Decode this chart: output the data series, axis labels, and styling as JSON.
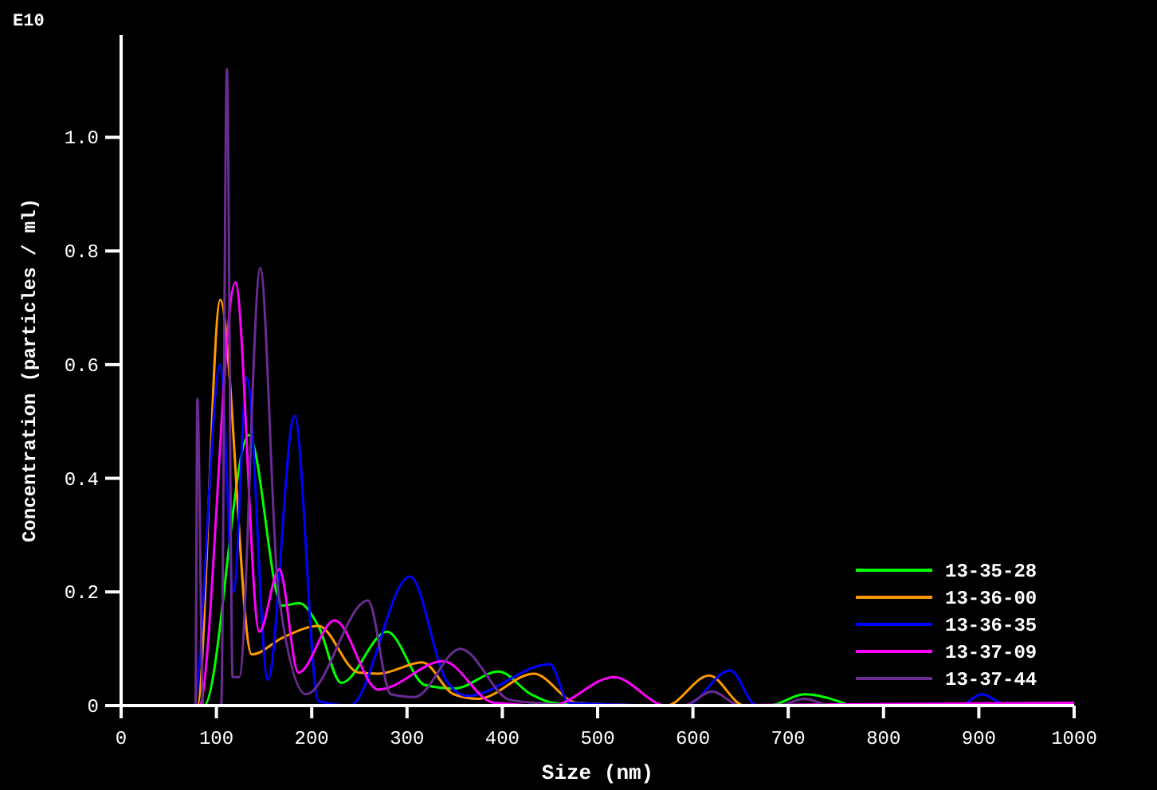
{
  "chart_data": {
    "type": "line",
    "xlabel": "Size (nm)",
    "ylabel": "Concentration (particles / ml)",
    "annotations": [
      "E10"
    ],
    "xlim": [
      0,
      1000
    ],
    "xticks": [
      0,
      100,
      200,
      300,
      400,
      500,
      600,
      700,
      800,
      900,
      1000
    ],
    "ylim": [
      0,
      1.18
    ],
    "yticks": [
      0,
      {
        "value": 0.2,
        "label": "0.2"
      },
      {
        "value": 0.4,
        "label": "0.4"
      },
      {
        "value": 0.6,
        "label": "0.6"
      },
      {
        "value": 0.8,
        "label": "0.8"
      },
      {
        "value": 1,
        "label": "1.0"
      }
    ],
    "grid": false,
    "legend": "bottom right",
    "marker": "none",
    "line_style": "solid",
    "series": [
      {
        "name": "13-35-28",
        "color": "#00ff00",
        "x": [
          80,
          87,
          134,
          169,
          187,
          207,
          231,
          279,
          319,
          350,
          396,
          430,
          453,
          500,
          680,
          717,
          765
        ],
        "values": [
          0,
          0,
          0.476,
          0.176,
          0.18,
          0.14,
          0.04,
          0.13,
          0.036,
          0.03,
          0.06,
          0.02,
          0.005,
          0,
          0,
          0.02,
          0
        ]
      },
      {
        "name": "13-36-00",
        "color": "#ff9900",
        "x": [
          76,
          80,
          104,
          137,
          170,
          207,
          249,
          270,
          316,
          349,
          375,
          433,
          478,
          572,
          617,
          654,
          1000
        ],
        "values": [
          0,
          0,
          0.714,
          0.09,
          0.12,
          0.14,
          0.058,
          0.056,
          0.076,
          0.02,
          0.012,
          0.056,
          0.005,
          0,
          0.053,
          0,
          0
        ]
      },
      {
        "name": "13-36-35",
        "color": "#0000ff",
        "x": [
          70,
          76,
          104,
          118,
          132,
          154,
          182,
          207,
          240,
          303,
          341,
          363,
          450,
          470,
          592,
          639,
          667,
          880,
          903,
          930,
          1000
        ],
        "values": [
          0,
          0,
          0.6,
          0.2,
          0.577,
          0.045,
          0.51,
          0.008,
          0,
          0.227,
          0.045,
          0.017,
          0.073,
          0.005,
          0,
          0.062,
          0,
          0,
          0.02,
          0,
          0
        ]
      },
      {
        "name": "13-37-09",
        "color": "#ff00ff",
        "x": [
          76,
          82,
          120,
          145,
          166,
          186,
          224,
          270,
          338,
          391,
          451,
          517,
          572,
          1000
        ],
        "values": [
          0,
          0,
          0.745,
          0.13,
          0.24,
          0.058,
          0.15,
          0.028,
          0.078,
          0.005,
          0,
          0.05,
          0,
          0.005
        ]
      },
      {
        "name": "13-37-44",
        "color": "#6a2c91",
        "x": [
          76,
          78,
          80,
          86,
          105,
          111,
          117,
          124,
          146,
          165,
          194,
          259,
          283,
          308,
          356,
          408,
          441,
          480,
          590,
          620,
          650,
          690,
          717,
          745,
          1000
        ],
        "values": [
          0,
          0,
          0.54,
          0,
          0,
          1.12,
          0.05,
          0.05,
          0.77,
          0.2,
          0.02,
          0.185,
          0.02,
          0.015,
          0.1,
          0.01,
          0.004,
          0,
          0,
          0.025,
          0,
          0,
          0.012,
          0,
          0
        ]
      }
    ]
  }
}
